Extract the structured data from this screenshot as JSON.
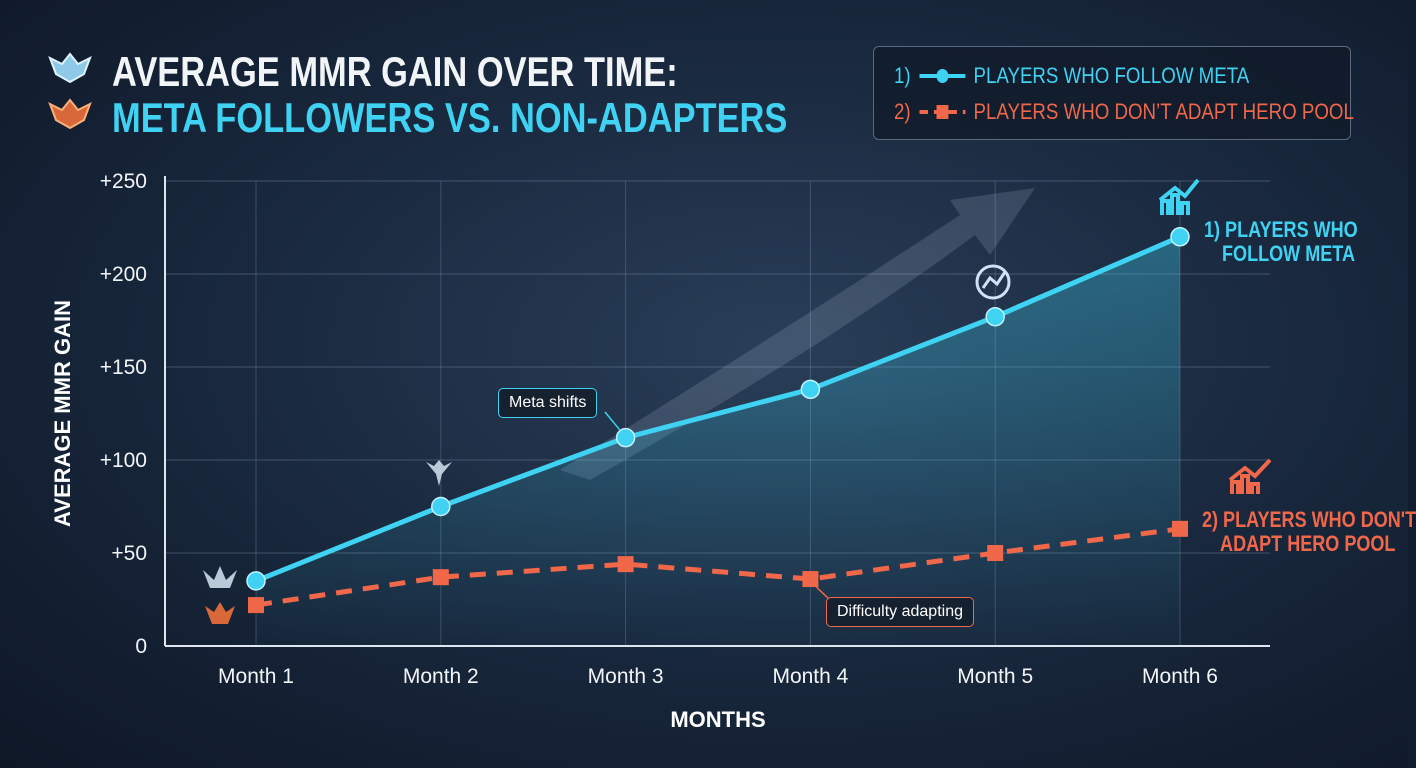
{
  "title_line1": "AVERAGE MMR GAIN OVER TIME:",
  "title_line2": "META FOLLOWERS VS. NON-ADAPTERS",
  "legend": [
    {
      "index": "1)",
      "label": "PLAYERS WHO FOLLOW META",
      "color": "#3fd2f2",
      "marker": "circle"
    },
    {
      "index": "2)",
      "label": "PLAYERS WHO DON’T ADAPT HERO POOL",
      "color": "#f0674a",
      "marker": "square"
    }
  ],
  "chart_data": {
    "type": "line",
    "title": "AVERAGE MMR GAIN OVER TIME: META FOLLOWERS VS. NON-ADAPTERS",
    "xlabel": "MONTHS",
    "ylabel": "AVERAGE MMR GAIN",
    "categories": [
      "Month 1",
      "Month 2",
      "Month 3",
      "Month 4",
      "Month 5",
      "Month 6"
    ],
    "yticks": [
      0,
      50,
      100,
      150,
      200,
      250
    ],
    "ytick_labels": [
      "0",
      "+50",
      "+100",
      "+150",
      "+200",
      "+250"
    ],
    "ylim": [
      0,
      250
    ],
    "grid": true,
    "legend_position": "top-right",
    "series": [
      {
        "name": "PLAYERS WHO FOLLOW META",
        "values": [
          35,
          75,
          112,
          138,
          177,
          220
        ],
        "color": "#3fd2f2",
        "style": "solid",
        "marker": "circle"
      },
      {
        "name": "PLAYERS WHO DON’T ADAPT HERO POOL",
        "values": [
          22,
          37,
          44,
          36,
          50,
          63
        ],
        "color": "#f0674a",
        "style": "dashed",
        "marker": "square"
      }
    ],
    "end_labels": [
      "1) PLAYERS WHO",
      "FOLLOW META",
      "2) PLAYERS WHO DON'T",
      "ADAPT HERO POOL"
    ],
    "annotations": [
      {
        "text": "Meta shifts",
        "x": "Month 3",
        "series": 0
      },
      {
        "text": "Difficulty adapting",
        "x": "Month 4",
        "series": 1
      }
    ]
  }
}
